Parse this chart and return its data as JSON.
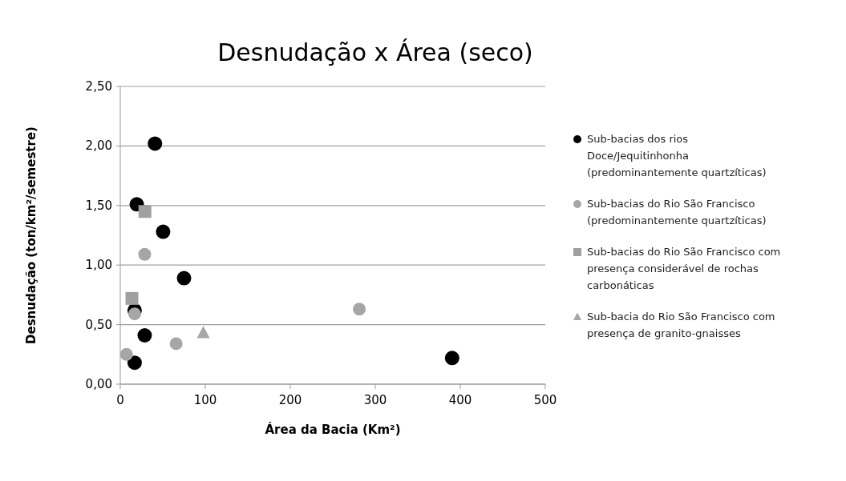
{
  "chart_data": {
    "type": "scatter",
    "title": "Desnudação x Área (seco)",
    "xlabel": "Área da Bacia (Km²)",
    "ylabel": "Desnudação (ton/km²/semestre)",
    "xlim": [
      0,
      500
    ],
    "xticks": [
      0,
      100,
      200,
      300,
      400,
      500
    ],
    "ylim": [
      0,
      2.5
    ],
    "yticks": [
      {
        "value": 0,
        "label": "0,00"
      },
      {
        "value": 0.5,
        "label": "0,50"
      },
      {
        "value": 1,
        "label": "1,00"
      },
      {
        "value": 1.5,
        "label": "1,50"
      },
      {
        "value": 2,
        "label": "2,00"
      },
      {
        "value": 2.5,
        "label": "2,50"
      }
    ],
    "grid": "y",
    "legend": "right",
    "series": [
      {
        "name": "Sub-bacias dos rios Doce/Jequitinhonha (predominantemente quartzíticas)",
        "color": "#000000",
        "marker": "circle",
        "x": [
          40.8,
          19.4,
          50.4,
          75,
          16.9,
          28.7,
          16.9,
          390.4
        ],
        "values": [
          2.02,
          1.51,
          1.28,
          0.89,
          0.62,
          0.41,
          0.18,
          0.22
        ]
      },
      {
        "name": "Sub-bacias do Rio São Francisco (predominantemente quartzíticas)",
        "color": "#a6a6a6",
        "marker": "circle",
        "x": [
          28.7,
          16.9,
          65.7,
          7.3,
          281.2
        ],
        "values": [
          1.09,
          0.59,
          0.34,
          0.25,
          0.63
        ]
      },
      {
        "name": "Sub-bacias do Rio São Francisco com presença considerável de rochas carbonáticas",
        "color": "#a0a0a0",
        "marker": "square",
        "x": [
          29,
          13.7
        ],
        "values": [
          1.45,
          0.72
        ]
      },
      {
        "name": "Sub-bacia do Rio São Francisco com presença de granito-gnaisses",
        "color": "#a6a6a6",
        "marker": "triangle",
        "x": [
          97.7
        ],
        "values": [
          0.43
        ]
      }
    ]
  }
}
